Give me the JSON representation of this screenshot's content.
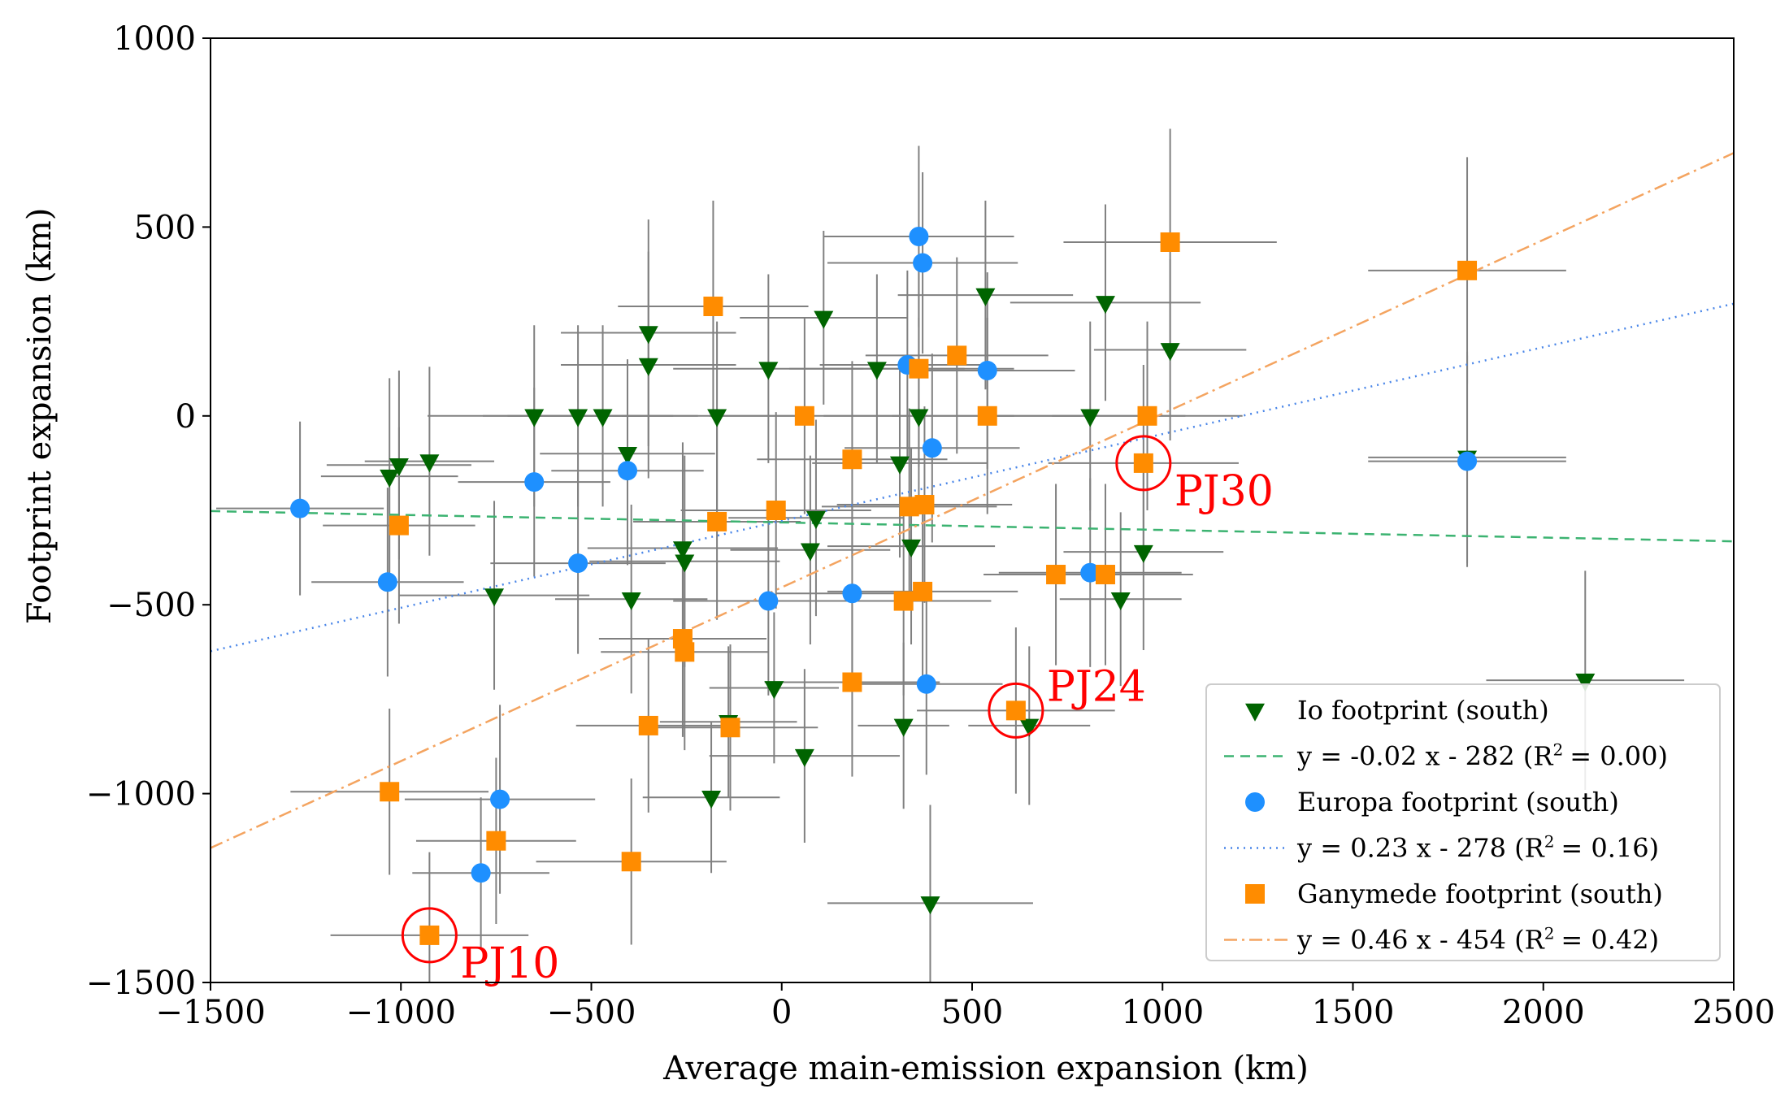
{
  "chart_data": {
    "type": "scatter",
    "xlabel": "Average main-emission expansion (km)",
    "ylabel": "Footprint expansion (km)",
    "xlim": [
      -1500,
      2500
    ],
    "ylim": [
      -1500,
      1000
    ],
    "xticks": [
      -1500,
      -1000,
      -500,
      0,
      500,
      1000,
      1500,
      2000,
      2500
    ],
    "yticks": [
      -1500,
      -1000,
      -500,
      0,
      500,
      1000
    ],
    "xtick_labels": [
      "−1500",
      "−1000",
      "−500",
      "0",
      "500",
      "1000",
      "1500",
      "2000",
      "2500"
    ],
    "ytick_labels": [
      "−1500",
      "−1000",
      "−500",
      "0",
      "500",
      "1000"
    ],
    "grid": false,
    "legend_position": "lower-right",
    "series": [
      {
        "name": "Io footprint (south)",
        "marker": "triangle-down",
        "color": "#006400",
        "points": [
          {
            "x": -1030,
            "y": -160,
            "xerr": 180,
            "yerr": 260
          },
          {
            "x": -1005,
            "y": -130,
            "xerr": 190,
            "yerr": 250
          },
          {
            "x": -925,
            "y": -120,
            "xerr": 170,
            "yerr": 250
          },
          {
            "x": -755,
            "y": -475,
            "xerr": 250,
            "yerr": 250
          },
          {
            "x": -650,
            "y": 0,
            "xerr": 280,
            "yerr": 240
          },
          {
            "x": -535,
            "y": 0,
            "xerr": 250,
            "yerr": 240
          },
          {
            "x": -470,
            "y": 0,
            "xerr": 250,
            "yerr": 240
          },
          {
            "x": -405,
            "y": -100,
            "xerr": 230,
            "yerr": 250
          },
          {
            "x": -395,
            "y": -485,
            "xerr": 200,
            "yerr": 250
          },
          {
            "x": -350,
            "y": 220,
            "xerr": 230,
            "yerr": 300
          },
          {
            "x": -350,
            "y": 135,
            "xerr": 230,
            "yerr": 300
          },
          {
            "x": -260,
            "y": -350,
            "xerr": 250,
            "yerr": 280
          },
          {
            "x": -255,
            "y": -385,
            "xerr": 250,
            "yerr": 280
          },
          {
            "x": -170,
            "y": 0,
            "xerr": 250,
            "yerr": 250
          },
          {
            "x": -185,
            "y": -1010,
            "xerr": 180,
            "yerr": 200
          },
          {
            "x": -140,
            "y": -810,
            "xerr": 180,
            "yerr": 200
          },
          {
            "x": -35,
            "y": 125,
            "xerr": 250,
            "yerr": 250
          },
          {
            "x": -20,
            "y": -720,
            "xerr": 170,
            "yerr": 200
          },
          {
            "x": 60,
            "y": -900,
            "xerr": 250,
            "yerr": 230
          },
          {
            "x": 75,
            "y": -355,
            "xerr": 210,
            "yerr": 250
          },
          {
            "x": 90,
            "y": -270,
            "xerr": 230,
            "yerr": 260
          },
          {
            "x": 110,
            "y": 260,
            "xerr": 220,
            "yerr": 230
          },
          {
            "x": 250,
            "y": 125,
            "xerr": 230,
            "yerr": 250
          },
          {
            "x": 310,
            "y": -125,
            "xerr": 230,
            "yerr": 250
          },
          {
            "x": 320,
            "y": -820,
            "xerr": 120,
            "yerr": 220
          },
          {
            "x": 340,
            "y": -345,
            "xerr": 220,
            "yerr": 260
          },
          {
            "x": 360,
            "y": 0,
            "xerr": 250,
            "yerr": 260
          },
          {
            "x": 390,
            "y": -1290,
            "xerr": 270,
            "yerr": 260
          },
          {
            "x": 535,
            "y": 320,
            "xerr": 230,
            "yerr": 250
          },
          {
            "x": 650,
            "y": -820,
            "xerr": 160,
            "yerr": 210
          },
          {
            "x": 810,
            "y": 0,
            "xerr": 250,
            "yerr": 250
          },
          {
            "x": 850,
            "y": 300,
            "xerr": 250,
            "yerr": 260
          },
          {
            "x": 890,
            "y": -485,
            "xerr": 160,
            "yerr": 230
          },
          {
            "x": 950,
            "y": -360,
            "xerr": 210,
            "yerr": 260
          },
          {
            "x": 1020,
            "y": 175,
            "xerr": 200,
            "yerr": 240
          },
          {
            "x": 1800,
            "y": -110,
            "xerr": 260,
            "yerr": 280
          },
          {
            "x": 2110,
            "y": -700,
            "xerr": 260,
            "yerr": 290
          }
        ],
        "fit": {
          "label": "y = -0.02 x - 282 (R",
          "r2": "= 0.00)",
          "slope": -0.02,
          "intercept": -282,
          "color": "#3cb371",
          "dash": "12,8"
        }
      },
      {
        "name": "Europa footprint (south)",
        "marker": "circle",
        "color": "#1e90ff",
        "points": [
          {
            "x": -1265,
            "y": -245,
            "xerr": 220,
            "yerr": 230
          },
          {
            "x": -1035,
            "y": -440,
            "xerr": 200,
            "yerr": 250
          },
          {
            "x": -650,
            "y": -175,
            "xerr": 200,
            "yerr": 250
          },
          {
            "x": -535,
            "y": -390,
            "xerr": 230,
            "yerr": 240
          },
          {
            "x": -405,
            "y": -145,
            "xerr": 200,
            "yerr": 250
          },
          {
            "x": -790,
            "y": -1210,
            "xerr": 180,
            "yerr": 200
          },
          {
            "x": -740,
            "y": -1015,
            "xerr": 250,
            "yerr": 250
          },
          {
            "x": -35,
            "y": -490,
            "xerr": 250,
            "yerr": 250
          },
          {
            "x": 185,
            "y": -470,
            "xerr": 200,
            "yerr": 230
          },
          {
            "x": 330,
            "y": 135,
            "xerr": 230,
            "yerr": 250
          },
          {
            "x": 360,
            "y": 475,
            "xerr": 250,
            "yerr": 240
          },
          {
            "x": 370,
            "y": 405,
            "xerr": 250,
            "yerr": 240
          },
          {
            "x": 380,
            "y": -710,
            "xerr": 200,
            "yerr": 240
          },
          {
            "x": 395,
            "y": -85,
            "xerr": 230,
            "yerr": 250
          },
          {
            "x": 540,
            "y": 120,
            "xerr": 230,
            "yerr": 260
          },
          {
            "x": 810,
            "y": -415,
            "xerr": 240,
            "yerr": 250
          },
          {
            "x": 1800,
            "y": -120,
            "xerr": 260,
            "yerr": 280
          }
        ],
        "fit": {
          "label": "y = 0.23 x - 278 (R",
          "r2": "= 0.16)",
          "slope": 0.23,
          "intercept": -278,
          "color": "#4a86e8",
          "dash": "2,6"
        }
      },
      {
        "name": "Ganymede footprint (south)",
        "marker": "square",
        "color": "#ff8c00",
        "points": [
          {
            "x": -1030,
            "y": -995,
            "xerr": 260,
            "yerr": 220
          },
          {
            "x": -1005,
            "y": -290,
            "xerr": 200,
            "yerr": 260
          },
          {
            "x": -925,
            "y": -1375,
            "xerr": 260,
            "yerr": 220
          },
          {
            "x": -750,
            "y": -1125,
            "xerr": 210,
            "yerr": 220
          },
          {
            "x": -395,
            "y": -1180,
            "xerr": 250,
            "yerr": 220
          },
          {
            "x": -350,
            "y": -820,
            "xerr": 190,
            "yerr": 230
          },
          {
            "x": -260,
            "y": -590,
            "xerr": 220,
            "yerr": 260
          },
          {
            "x": -255,
            "y": -625,
            "xerr": 220,
            "yerr": 260
          },
          {
            "x": -180,
            "y": 290,
            "xerr": 250,
            "yerr": 280
          },
          {
            "x": -170,
            "y": -280,
            "xerr": 220,
            "yerr": 260
          },
          {
            "x": -135,
            "y": -825,
            "xerr": 230,
            "yerr": 220
          },
          {
            "x": -15,
            "y": -250,
            "xerr": 250,
            "yerr": 260
          },
          {
            "x": 60,
            "y": 0,
            "xerr": 250,
            "yerr": 260
          },
          {
            "x": 185,
            "y": -115,
            "xerr": 250,
            "yerr": 260
          },
          {
            "x": 185,
            "y": -705,
            "xerr": 230,
            "yerr": 250
          },
          {
            "x": 320,
            "y": -490,
            "xerr": 230,
            "yerr": 250
          },
          {
            "x": 335,
            "y": -240,
            "xerr": 230,
            "yerr": 260
          },
          {
            "x": 360,
            "y": 125,
            "xerr": 250,
            "yerr": 260
          },
          {
            "x": 370,
            "y": -465,
            "xerr": 250,
            "yerr": 250
          },
          {
            "x": 375,
            "y": -235,
            "xerr": 230,
            "yerr": 260
          },
          {
            "x": 460,
            "y": 160,
            "xerr": 240,
            "yerr": 260
          },
          {
            "x": 540,
            "y": 0,
            "xerr": 250,
            "yerr": 260
          },
          {
            "x": 615,
            "y": -780,
            "xerr": 260,
            "yerr": 220
          },
          {
            "x": 720,
            "y": -420,
            "xerr": 190,
            "yerr": 240
          },
          {
            "x": 850,
            "y": -420,
            "xerr": 230,
            "yerr": 240
          },
          {
            "x": 950,
            "y": -125,
            "xerr": 250,
            "yerr": 260
          },
          {
            "x": 960,
            "y": 0,
            "xerr": 250,
            "yerr": 250
          },
          {
            "x": 1020,
            "y": 460,
            "xerr": 280,
            "yerr": 300
          },
          {
            "x": 1800,
            "y": 385,
            "xerr": 260,
            "yerr": 300
          }
        ],
        "fit": {
          "label": "y = 0.46 x - 454 (R",
          "r2": "= 0.42)",
          "slope": 0.46,
          "intercept": -454,
          "color": "#f4a460",
          "dash": "16,6,3,6"
        }
      }
    ],
    "annotations": [
      {
        "text": "PJ10",
        "x": -925,
        "y": -1375,
        "color": "#ff0000"
      },
      {
        "text": "PJ24",
        "x": 615,
        "y": -780,
        "color": "#ff0000"
      },
      {
        "text": "PJ30",
        "x": 950,
        "y": -125,
        "color": "#ff0000"
      }
    ]
  }
}
